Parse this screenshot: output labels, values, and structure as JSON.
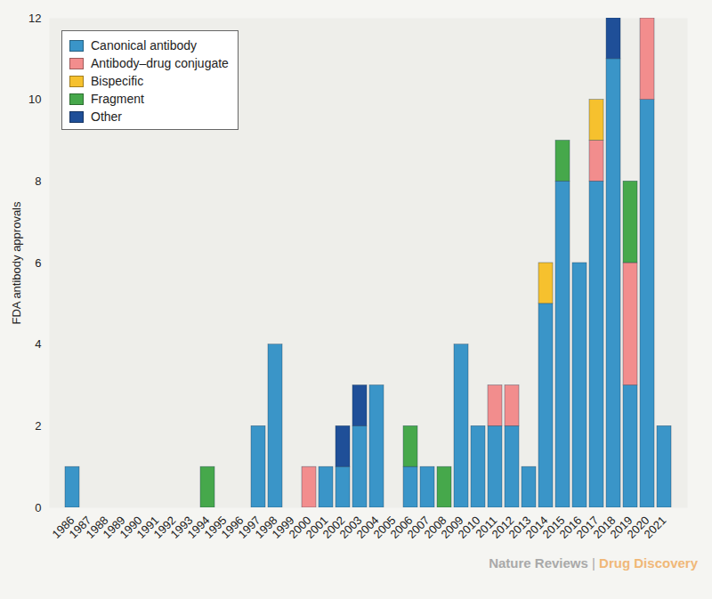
{
  "chart_data": {
    "type": "bar",
    "stacked": true,
    "grid": false,
    "legend": "top-left",
    "y_label": "FDA antibody approvals",
    "source": "Nature Reviews | Drug Discovery",
    "categories": [
      "1986",
      "1987",
      "1988",
      "1989",
      "1990",
      "1991",
      "1992",
      "1993",
      "1994",
      "1995",
      "1996",
      "1997",
      "1998",
      "1999",
      "2000",
      "2001",
      "2002",
      "2003",
      "2004",
      "2005",
      "2006",
      "2007",
      "2008",
      "2009",
      "2010",
      "2011",
      "2012",
      "2013",
      "2014",
      "2015",
      "2016",
      "2017",
      "2018",
      "2019",
      "2020",
      "2021"
    ],
    "ylim": [
      0,
      12
    ],
    "yticks": [
      0,
      2,
      4,
      6,
      8,
      10,
      12
    ],
    "series": [
      {
        "name": "Canonical antibody",
        "color": "#3a95c8",
        "values": [
          1,
          0,
          0,
          0,
          0,
          0,
          0,
          0,
          0,
          0,
          0,
          2,
          4,
          0,
          0,
          1,
          1,
          2,
          3,
          0,
          1,
          1,
          0,
          4,
          2,
          2,
          2,
          1,
          5,
          8,
          6,
          8,
          11,
          3,
          10,
          2
        ]
      },
      {
        "name": "Antibody–drug conjugate",
        "color": "#f28d8d",
        "values": [
          0,
          0,
          0,
          0,
          0,
          0,
          0,
          0,
          0,
          0,
          0,
          0,
          0,
          0,
          1,
          0,
          0,
          0,
          0,
          0,
          0,
          0,
          0,
          0,
          0,
          1,
          1,
          0,
          0,
          0,
          0,
          1,
          0,
          3,
          2,
          0
        ]
      },
      {
        "name": "Bispecific",
        "color": "#f6c12e",
        "values": [
          0,
          0,
          0,
          0,
          0,
          0,
          0,
          0,
          0,
          0,
          0,
          0,
          0,
          0,
          0,
          0,
          0,
          0,
          0,
          0,
          0,
          0,
          0,
          0,
          0,
          0,
          0,
          0,
          1,
          0,
          0,
          1,
          0,
          0,
          0,
          0
        ]
      },
      {
        "name": "Fragment",
        "color": "#46a84b",
        "values": [
          0,
          0,
          0,
          0,
          0,
          0,
          0,
          0,
          1,
          0,
          0,
          0,
          0,
          0,
          0,
          0,
          0,
          0,
          0,
          0,
          1,
          0,
          1,
          0,
          0,
          0,
          0,
          0,
          0,
          1,
          0,
          0,
          0,
          2,
          0,
          0
        ]
      },
      {
        "name": "Other",
        "color": "#1f4f98",
        "values": [
          0,
          0,
          0,
          0,
          0,
          0,
          0,
          0,
          0,
          0,
          0,
          0,
          0,
          0,
          0,
          0,
          1,
          1,
          0,
          0,
          0,
          0,
          0,
          0,
          0,
          0,
          0,
          0,
          0,
          0,
          0,
          0,
          1,
          0,
          0,
          0
        ]
      }
    ]
  }
}
